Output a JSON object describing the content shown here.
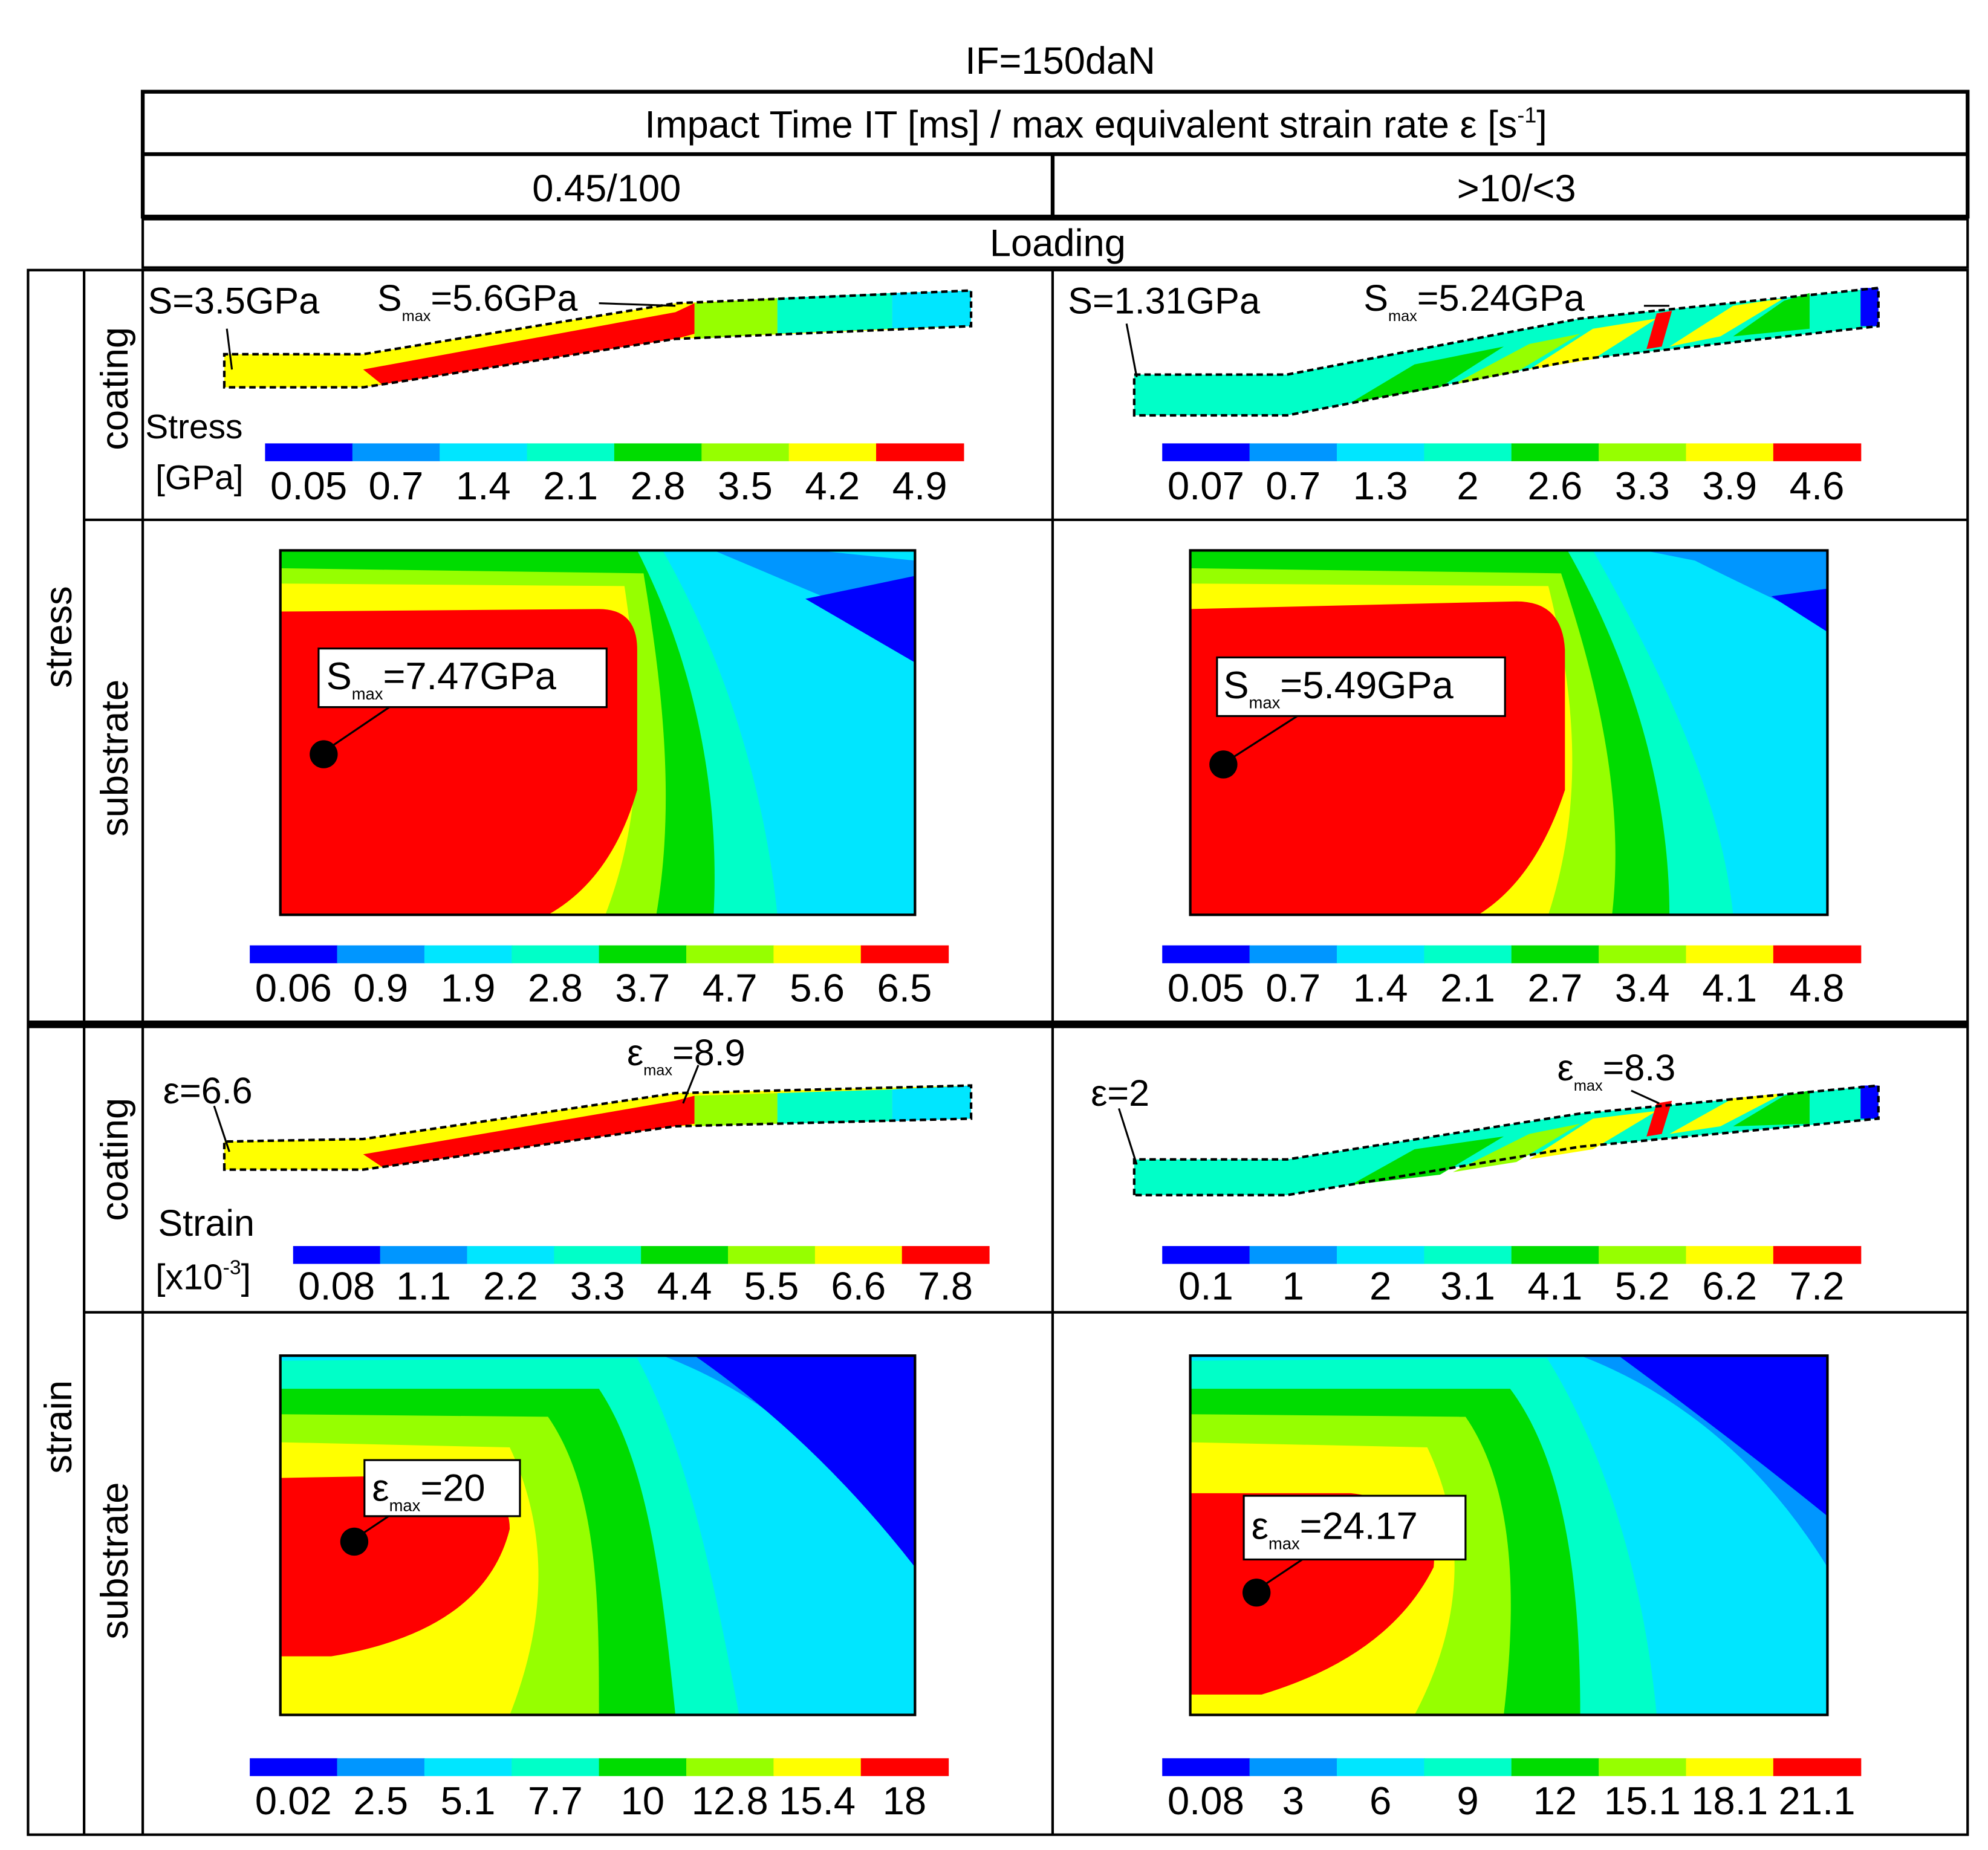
{
  "header": {
    "title": "IF=150daN",
    "impact_header": "Impact Time IT [ms] / max equivalent strain rate ε [s",
    "impact_header_sup": "-1",
    "impact_header_end": "]",
    "col_left": "0.45/100",
    "col_right": ">10/<3",
    "phase": "Loading"
  },
  "row_labels": {
    "stress": "stress",
    "strain": "strain",
    "coating": "coating",
    "substrate": "substrate"
  },
  "legend_titles": {
    "stress_line1": "Stress",
    "stress_line2": "[GPa]",
    "strain_line1": "Strain",
    "strain_line2": "[x10",
    "strain_line2_sup": "-3",
    "strain_line2_end": "]"
  },
  "colors": {
    "palette": [
      "#0000ff",
      "#0096ff",
      "#00e6ff",
      "#00ffc8",
      "#00dc00",
      "#96ff00",
      "#ffff00",
      "#ff0000"
    ],
    "border": "#000000"
  },
  "panels": {
    "stress_coating_left": {
      "ann_a": "S=3.5GPa",
      "ann_b_main": "S",
      "ann_b_sub": "max",
      "ann_b_val": "=5.6GPa",
      "ticks": [
        "0.05",
        "0.7",
        "1.4",
        "2.1",
        "2.8",
        "3.5",
        "4.2",
        "4.9"
      ]
    },
    "stress_coating_right": {
      "ann_a": "S=1.31GPa",
      "ann_b_main": "S",
      "ann_b_sub": "max",
      "ann_b_val": "=5.24GPa",
      "ticks": [
        "0.07",
        "0.7",
        "1.3",
        "2",
        "2.6",
        "3.3",
        "3.9",
        "4.6"
      ]
    },
    "stress_substrate_left": {
      "box_main": "S",
      "box_sub": "max",
      "box_val": "=7.47GPa",
      "ticks": [
        "0.06",
        "0.9",
        "1.9",
        "2.8",
        "3.7",
        "4.7",
        "5.6",
        "6.5"
      ]
    },
    "stress_substrate_right": {
      "box_main": "S",
      "box_sub": "max",
      "box_val": "=5.49GPa",
      "ticks": [
        "0.05",
        "0.7",
        "1.4",
        "2.1",
        "2.7",
        "3.4",
        "4.1",
        "4.8"
      ]
    },
    "strain_coating_left": {
      "ann_a": "ε=6.6",
      "ann_b_main": "ε",
      "ann_b_sub": "max",
      "ann_b_val": "=8.9",
      "ticks": [
        "0.08",
        "1.1",
        "2.2",
        "3.3",
        "4.4",
        "5.5",
        "6.6",
        "7.8"
      ]
    },
    "strain_coating_right": {
      "ann_a": "ε=2",
      "ann_b_main": "ε",
      "ann_b_sub": "max",
      "ann_b_val": "=8.3",
      "ticks": [
        "0.1",
        "1",
        "2",
        "3.1",
        "4.1",
        "5.2",
        "6.2",
        "7.2"
      ]
    },
    "strain_substrate_left": {
      "box_main": "ε",
      "box_sub": "max",
      "box_val": "=20",
      "ticks": [
        "0.02",
        "2.5",
        "5.1",
        "7.7",
        "10",
        "12.8",
        "15.4",
        "18"
      ]
    },
    "strain_substrate_right": {
      "box_main": "ε",
      "box_sub": "max",
      "box_val": "=24.17",
      "ticks": [
        "0.08",
        "3",
        "6",
        "9",
        "12",
        "15.1",
        "18.1",
        "21.1"
      ]
    }
  }
}
